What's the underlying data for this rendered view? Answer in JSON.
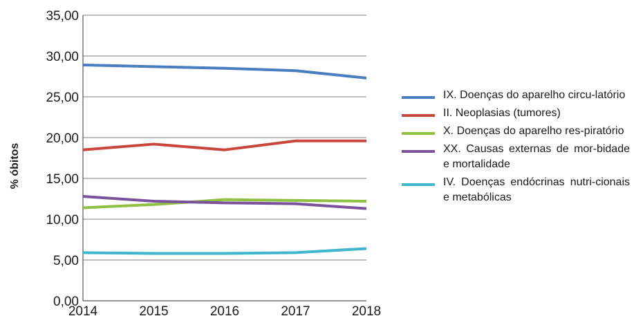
{
  "chart_data": {
    "type": "line",
    "title": "",
    "xlabel": "",
    "ylabel": "% óbitos",
    "x": [
      "2014",
      "2015",
      "2016",
      "2017",
      "2018"
    ],
    "ylim": [
      0,
      35
    ],
    "yticks": [
      "0,00",
      "5,00",
      "10,00",
      "15,00",
      "20,00",
      "25,00",
      "30,00",
      "35,00"
    ],
    "grid": "horizontal",
    "legend_position": "right",
    "series": [
      {
        "name": "IX. Doenças do aparelho circulatório",
        "label": "IX.  Doenças do aparelho circu-latório",
        "color": "#4a7ec1",
        "values": [
          28.9,
          28.7,
          28.5,
          28.2,
          27.3
        ]
      },
      {
        "name": "II. Neoplasias (tumores)",
        "label": "II.  Neoplasias (tumores)",
        "color": "#c8463c",
        "values": [
          18.5,
          19.2,
          18.5,
          19.6,
          19.6
        ]
      },
      {
        "name": "X. Doenças do aparelho respiratório",
        "label": "X.   Doenças do aparelho res-piratório",
        "color": "#8fc041",
        "values": [
          11.4,
          11.8,
          12.4,
          12.3,
          12.2
        ]
      },
      {
        "name": "XX. Causas externas de morbidade e mortalidade",
        "label": "XX.  Causas externas de mor-bidade e mortalidade",
        "color": "#7a529c",
        "values": [
          12.8,
          12.2,
          12.0,
          11.9,
          11.3
        ]
      },
      {
        "name": "IV. Doenças endócrinas nutricionais e metabólicas",
        "label": "IV.  Doenças endócrinas nutri-cionais e metabólicas",
        "color": "#3fb6cc",
        "values": [
          5.9,
          5.8,
          5.8,
          5.9,
          6.4
        ]
      }
    ]
  }
}
